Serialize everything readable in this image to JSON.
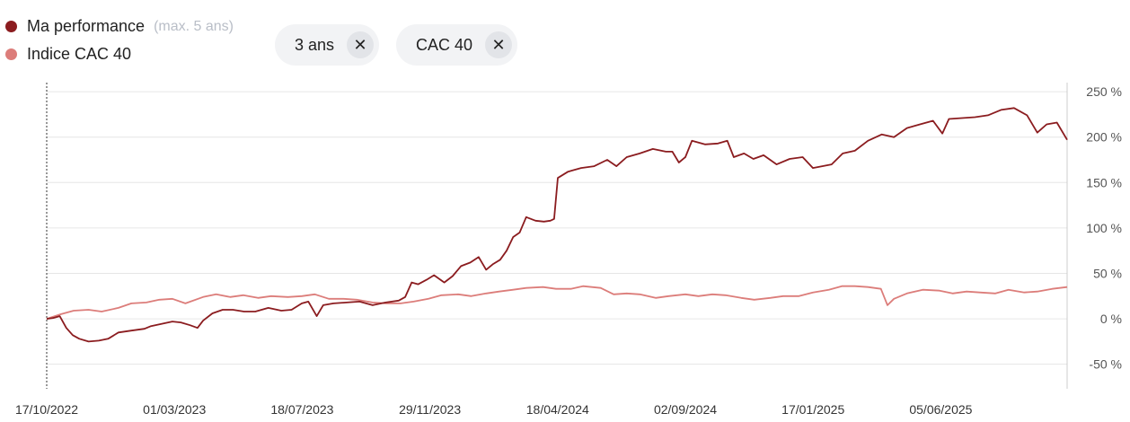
{
  "legend": {
    "items": [
      {
        "label": "Ma performance",
        "note": "(max. 5 ans)",
        "color": "#8b1c1f"
      },
      {
        "label": "Indice CAC 40",
        "note": "",
        "color": "#dc7d7a"
      }
    ]
  },
  "filters": [
    {
      "label": "3 ans",
      "close_icon": "✕"
    },
    {
      "label": "CAC 40",
      "close_icon": "✕"
    }
  ],
  "chart_data": {
    "type": "line",
    "y_tick_labels": [
      "250 %",
      "200 %",
      "150 %",
      "100 %",
      "50 %",
      "0 %",
      "-50 %"
    ],
    "y_ticks": [
      250,
      200,
      150,
      100,
      50,
      0,
      -50
    ],
    "ylim": [
      -77,
      260
    ],
    "x_tick_labels": [
      "17/10/2022",
      "01/03/2023",
      "18/07/2023",
      "29/11/2023",
      "18/04/2024",
      "02/09/2024",
      "17/01/2025",
      "05/06/2025"
    ],
    "x_start": "2022-10-17",
    "x_end": "2025-10-17",
    "grid": true,
    "series": [
      {
        "name": "Ma performance",
        "color": "#8b1c1f",
        "points": [
          [
            "2022-10-17",
            0
          ],
          [
            "2022-10-24",
            1
          ],
          [
            "2022-10-31",
            3
          ],
          [
            "2022-11-07",
            -10
          ],
          [
            "2022-11-14",
            -18
          ],
          [
            "2022-11-21",
            -22
          ],
          [
            "2022-12-01",
            -25
          ],
          [
            "2022-12-12",
            -24
          ],
          [
            "2022-12-22",
            -22
          ],
          [
            "2023-01-02",
            -15
          ],
          [
            "2023-01-16",
            -13
          ],
          [
            "2023-01-30",
            -11
          ],
          [
            "2023-02-06",
            -8
          ],
          [
            "2023-02-20",
            -5
          ],
          [
            "2023-03-01",
            -3
          ],
          [
            "2023-03-10",
            -4
          ],
          [
            "2023-03-20",
            -7
          ],
          [
            "2023-03-28",
            -10
          ],
          [
            "2023-04-03",
            -2
          ],
          [
            "2023-04-13",
            6
          ],
          [
            "2023-04-24",
            10
          ],
          [
            "2023-05-05",
            10
          ],
          [
            "2023-05-17",
            8
          ],
          [
            "2023-05-29",
            8
          ],
          [
            "2023-06-12",
            12
          ],
          [
            "2023-06-26",
            9
          ],
          [
            "2023-07-07",
            10
          ],
          [
            "2023-07-18",
            17
          ],
          [
            "2023-07-25",
            19
          ],
          [
            "2023-08-03",
            3
          ],
          [
            "2023-08-10",
            15
          ],
          [
            "2023-08-21",
            17
          ],
          [
            "2023-09-04",
            18
          ],
          [
            "2023-09-18",
            19
          ],
          [
            "2023-10-02",
            15
          ],
          [
            "2023-10-16",
            18
          ],
          [
            "2023-10-30",
            20
          ],
          [
            "2023-11-06",
            24
          ],
          [
            "2023-11-13",
            40
          ],
          [
            "2023-11-20",
            38
          ],
          [
            "2023-11-29",
            43
          ],
          [
            "2023-12-07",
            48
          ],
          [
            "2023-12-18",
            40
          ],
          [
            "2023-12-27",
            47
          ],
          [
            "2024-01-05",
            58
          ],
          [
            "2024-01-15",
            62
          ],
          [
            "2024-01-24",
            68
          ],
          [
            "2024-02-01",
            54
          ],
          [
            "2024-02-08",
            60
          ],
          [
            "2024-02-16",
            65
          ],
          [
            "2024-02-23",
            75
          ],
          [
            "2024-03-01",
            90
          ],
          [
            "2024-03-08",
            95
          ],
          [
            "2024-03-15",
            112
          ],
          [
            "2024-03-25",
            108
          ],
          [
            "2024-04-03",
            107
          ],
          [
            "2024-04-10",
            108
          ],
          [
            "2024-04-14",
            110
          ],
          [
            "2024-04-18",
            155
          ],
          [
            "2024-04-29",
            162
          ],
          [
            "2024-05-13",
            166
          ],
          [
            "2024-05-27",
            168
          ],
          [
            "2024-06-10",
            175
          ],
          [
            "2024-06-20",
            168
          ],
          [
            "2024-07-01",
            178
          ],
          [
            "2024-07-15",
            182
          ],
          [
            "2024-07-29",
            187
          ],
          [
            "2024-08-12",
            184
          ],
          [
            "2024-08-19",
            184
          ],
          [
            "2024-08-26",
            172
          ],
          [
            "2024-09-02",
            178
          ],
          [
            "2024-09-09",
            196
          ],
          [
            "2024-09-23",
            192
          ],
          [
            "2024-10-07",
            193
          ],
          [
            "2024-10-17",
            196
          ],
          [
            "2024-10-24",
            178
          ],
          [
            "2024-11-04",
            182
          ],
          [
            "2024-11-14",
            176
          ],
          [
            "2024-11-25",
            180
          ],
          [
            "2024-12-09",
            170
          ],
          [
            "2024-12-23",
            176
          ],
          [
            "2025-01-06",
            178
          ],
          [
            "2025-01-17",
            166
          ],
          [
            "2025-01-27",
            168
          ],
          [
            "2025-02-06",
            170
          ],
          [
            "2025-02-18",
            182
          ],
          [
            "2025-03-03",
            185
          ],
          [
            "2025-03-17",
            196
          ],
          [
            "2025-04-01",
            203
          ],
          [
            "2025-04-14",
            200
          ],
          [
            "2025-04-28",
            210
          ],
          [
            "2025-05-12",
            214
          ],
          [
            "2025-05-26",
            218
          ],
          [
            "2025-06-05",
            204
          ],
          [
            "2025-06-12",
            220
          ],
          [
            "2025-06-26",
            221
          ],
          [
            "2025-07-10",
            222
          ],
          [
            "2025-07-24",
            224
          ],
          [
            "2025-08-07",
            230
          ],
          [
            "2025-08-21",
            232
          ],
          [
            "2025-09-04",
            224
          ],
          [
            "2025-09-15",
            205
          ],
          [
            "2025-09-25",
            214
          ],
          [
            "2025-10-06",
            216
          ],
          [
            "2025-10-17",
            197
          ]
        ]
      },
      {
        "name": "Indice CAC 40",
        "color": "#dc7d7a",
        "points": [
          [
            "2022-10-17",
            0
          ],
          [
            "2022-11-01",
            5
          ],
          [
            "2022-11-15",
            9
          ],
          [
            "2022-12-01",
            10
          ],
          [
            "2022-12-15",
            8
          ],
          [
            "2023-01-02",
            12
          ],
          [
            "2023-01-16",
            17
          ],
          [
            "2023-02-01",
            18
          ],
          [
            "2023-02-15",
            21
          ],
          [
            "2023-03-01",
            22
          ],
          [
            "2023-03-15",
            17
          ],
          [
            "2023-04-03",
            24
          ],
          [
            "2023-04-17",
            27
          ],
          [
            "2023-05-02",
            24
          ],
          [
            "2023-05-16",
            26
          ],
          [
            "2023-06-01",
            23
          ],
          [
            "2023-06-15",
            25
          ],
          [
            "2023-07-03",
            24
          ],
          [
            "2023-07-18",
            25
          ],
          [
            "2023-08-01",
            27
          ],
          [
            "2023-08-16",
            22
          ],
          [
            "2023-09-01",
            22
          ],
          [
            "2023-09-15",
            21
          ],
          [
            "2023-10-02",
            18
          ],
          [
            "2023-10-16",
            17
          ],
          [
            "2023-11-01",
            17
          ],
          [
            "2023-11-15",
            19
          ],
          [
            "2023-12-01",
            22
          ],
          [
            "2023-12-15",
            26
          ],
          [
            "2024-01-02",
            27
          ],
          [
            "2024-01-16",
            25
          ],
          [
            "2024-02-01",
            28
          ],
          [
            "2024-02-15",
            30
          ],
          [
            "2024-03-01",
            32
          ],
          [
            "2024-03-15",
            34
          ],
          [
            "2024-04-02",
            35
          ],
          [
            "2024-04-16",
            33
          ],
          [
            "2024-05-02",
            33
          ],
          [
            "2024-05-15",
            36
          ],
          [
            "2024-06-03",
            34
          ],
          [
            "2024-06-17",
            27
          ],
          [
            "2024-07-01",
            28
          ],
          [
            "2024-07-15",
            27
          ],
          [
            "2024-08-01",
            23
          ],
          [
            "2024-08-15",
            25
          ],
          [
            "2024-09-02",
            27
          ],
          [
            "2024-09-16",
            25
          ],
          [
            "2024-10-01",
            27
          ],
          [
            "2024-10-15",
            26
          ],
          [
            "2024-11-01",
            23
          ],
          [
            "2024-11-15",
            21
          ],
          [
            "2024-12-02",
            23
          ],
          [
            "2024-12-16",
            25
          ],
          [
            "2025-01-02",
            25
          ],
          [
            "2025-01-17",
            29
          ],
          [
            "2025-02-03",
            32
          ],
          [
            "2025-02-17",
            36
          ],
          [
            "2025-03-03",
            36
          ],
          [
            "2025-03-17",
            35
          ],
          [
            "2025-03-31",
            33
          ],
          [
            "2025-04-07",
            15
          ],
          [
            "2025-04-14",
            22
          ],
          [
            "2025-04-28",
            28
          ],
          [
            "2025-05-15",
            32
          ],
          [
            "2025-06-02",
            31
          ],
          [
            "2025-06-16",
            28
          ],
          [
            "2025-07-01",
            30
          ],
          [
            "2025-07-15",
            29
          ],
          [
            "2025-08-01",
            28
          ],
          [
            "2025-08-15",
            32
          ],
          [
            "2025-09-01",
            29
          ],
          [
            "2025-09-15",
            30
          ],
          [
            "2025-10-01",
            33
          ],
          [
            "2025-10-17",
            35
          ]
        ]
      }
    ]
  }
}
